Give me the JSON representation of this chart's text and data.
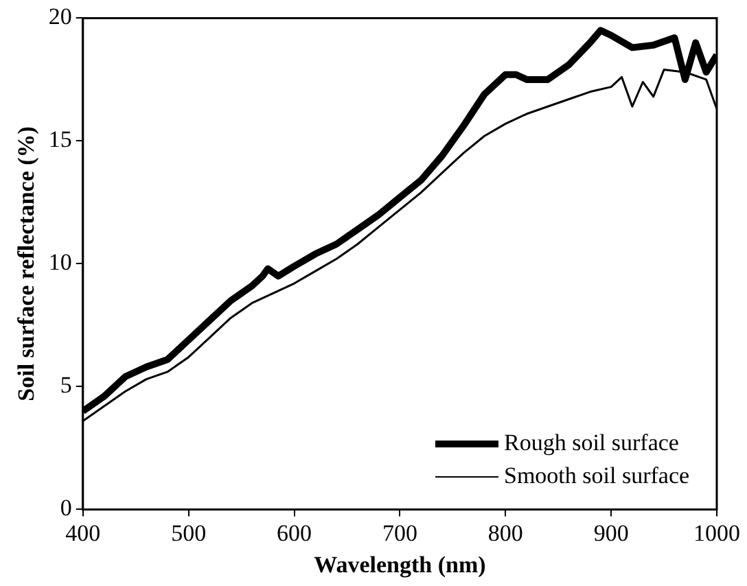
{
  "chart_data": {
    "type": "line",
    "xlabel": "Wavelength (nm)",
    "ylabel": "Soil surface reflectance (%)",
    "xlim": [
      400,
      1000
    ],
    "xticks": [
      400,
      500,
      600,
      700,
      800,
      900,
      1000
    ],
    "ylim": [
      0,
      20
    ],
    "yticks": [
      0,
      5,
      10,
      15,
      20
    ],
    "grid": false,
    "legend": "bottom right",
    "marker": "none",
    "line_style": "solid",
    "series": [
      {
        "name": "Rough soil surface",
        "color": "#000000",
        "x": [
          400,
          420,
          440,
          460,
          480,
          500,
          520,
          540,
          560,
          570,
          575,
          585,
          600,
          620,
          640,
          660,
          680,
          700,
          720,
          740,
          760,
          780,
          800,
          810,
          820,
          840,
          860,
          880,
          890,
          900,
          920,
          940,
          960,
          970,
          980,
          990,
          1000
        ],
        "values": [
          4.0,
          4.6,
          5.4,
          5.8,
          6.1,
          6.9,
          7.7,
          8.5,
          9.1,
          9.5,
          9.8,
          9.5,
          9.9,
          10.4,
          10.8,
          11.4,
          12.0,
          12.7,
          13.4,
          14.4,
          15.6,
          16.9,
          17.7,
          17.7,
          17.5,
          17.5,
          18.1,
          19.0,
          19.5,
          19.3,
          18.8,
          18.9,
          19.2,
          17.5,
          19.0,
          17.8,
          18.5
        ]
      },
      {
        "name": "Smooth soil surface",
        "color": "#000000",
        "x": [
          400,
          420,
          440,
          460,
          480,
          500,
          520,
          540,
          560,
          580,
          600,
          620,
          640,
          660,
          680,
          700,
          720,
          740,
          760,
          780,
          800,
          820,
          840,
          860,
          880,
          900,
          910,
          920,
          930,
          940,
          950,
          970,
          990,
          1000
        ],
        "values": [
          3.6,
          4.2,
          4.8,
          5.3,
          5.6,
          6.2,
          7.0,
          7.8,
          8.4,
          8.8,
          9.2,
          9.7,
          10.2,
          10.8,
          11.5,
          12.2,
          12.9,
          13.7,
          14.5,
          15.2,
          15.7,
          16.1,
          16.4,
          16.7,
          17.0,
          17.2,
          17.6,
          16.4,
          17.4,
          16.8,
          17.9,
          17.8,
          17.5,
          16.3
        ]
      }
    ]
  }
}
